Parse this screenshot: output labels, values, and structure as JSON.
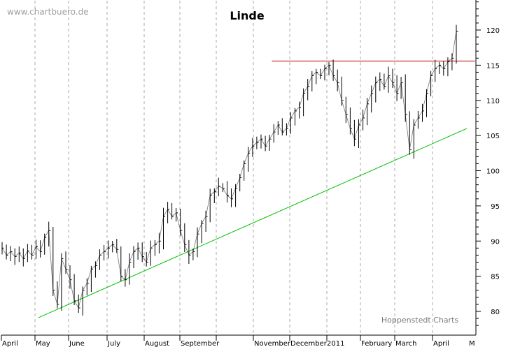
{
  "watermark": "www.chartbuero.de",
  "credit": "Hoppenstedt Charts",
  "colors": {
    "price": "#000000",
    "resistance": "#c00000",
    "support": "#00c000",
    "grid": "#a8a8a8",
    "background": "#ffffff"
  },
  "chart_data": {
    "type": "line",
    "title": "Linde",
    "y_ticks": [
      80,
      85,
      90,
      95,
      100,
      105,
      110,
      115,
      120
    ],
    "ylim": [
      77.7,
      124.2
    ],
    "grid": "vertical dotted at month starts",
    "x_ticks": [
      "April",
      "May",
      "June",
      "July",
      "August",
      "September",
      "November",
      "December",
      "2011",
      "February",
      "March",
      "April",
      "M"
    ],
    "series": [
      {
        "values": [
          89.0,
          88.0,
          88.5,
          87.8,
          88.3,
          87.5,
          88.6,
          88.0,
          89.2,
          88.5,
          90.5,
          91.5,
          83.0,
          81.0,
          87.5,
          86.0,
          84.5,
          81.5,
          80.5,
          83.0,
          84.0,
          86.0,
          86.5,
          88.0,
          88.5,
          89.0,
          89.5,
          88.8,
          85.0,
          84.5,
          87.0,
          88.5,
          89.0,
          87.8,
          87.0,
          89.0,
          89.5,
          90.0,
          93.5,
          94.5,
          93.5,
          94.0,
          91.5,
          89.5,
          88.0,
          88.5,
          91.0,
          92.5,
          93.5,
          96.5,
          97.0,
          97.8,
          97.5,
          96.5,
          96.0,
          97.5,
          99.0,
          101.0,
          102.5,
          103.5,
          104.0,
          104.5,
          103.5,
          104.5,
          105.5,
          106.5,
          105.5,
          106.0,
          107.5,
          108.5,
          109.0,
          111.0,
          112.0,
          113.5,
          114.0,
          113.5,
          114.5,
          115.0,
          113.5,
          112.5,
          110.0,
          108.0,
          106.0,
          104.5,
          106.5,
          107.5,
          109.5,
          111.0,
          112.5,
          113.0,
          112.0,
          113.5,
          112.5,
          111.0,
          112.5,
          108.0,
          103.0,
          106.5,
          107.5,
          108.5,
          111.0,
          113.5,
          114.5,
          115.0,
          114.5,
          115.5,
          116.0,
          119.8
        ]
      }
    ],
    "lines": [
      {
        "name": "resistance",
        "from": {
          "month": 7.51,
          "value": 115.6
        },
        "to": {
          "month": 13.19,
          "value": 115.6
        }
      },
      {
        "name": "support",
        "from": {
          "month": 1.1,
          "value": 79.1
        },
        "to": {
          "month": 12.96,
          "value": 106.0
        }
      }
    ]
  }
}
